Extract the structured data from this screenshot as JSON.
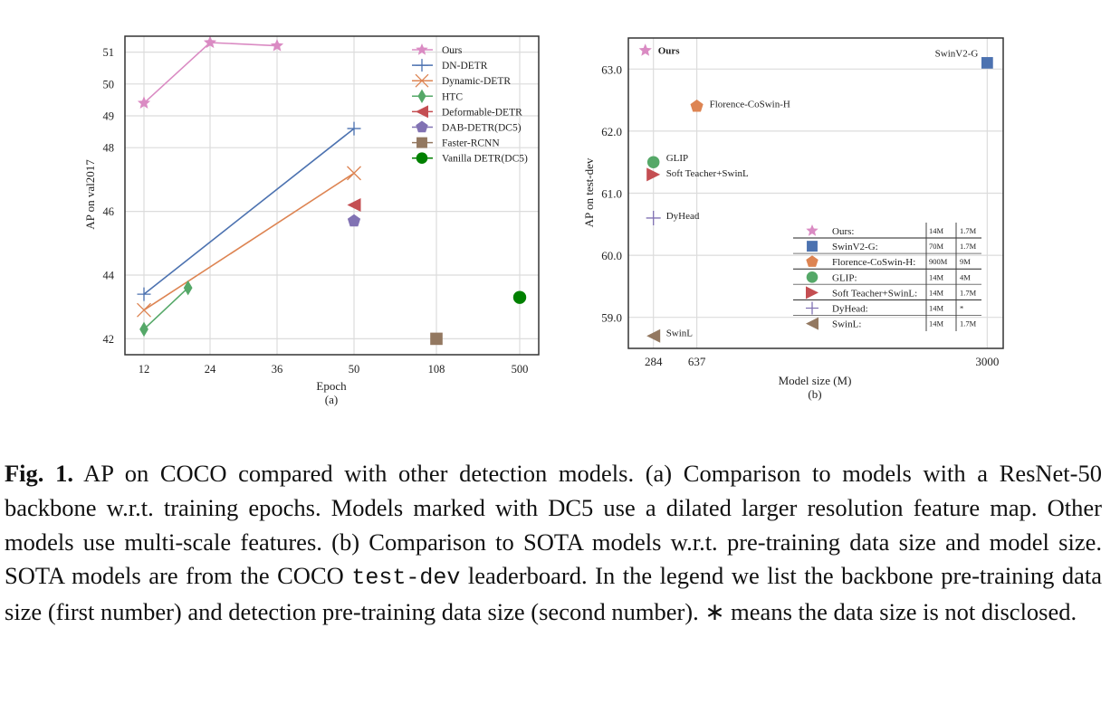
{
  "chart_data": [
    {
      "type": "line",
      "panel_label": "(a)",
      "xlabel": "Epoch",
      "ylabel": "AP on val2017",
      "x_ticks": [
        "12",
        "24",
        "36",
        "50",
        "108",
        "500"
      ],
      "y_ticks": [
        "42",
        "44",
        "46",
        "48",
        "49",
        "50",
        "51"
      ],
      "ylim": [
        41.5,
        51.5
      ],
      "grid": true,
      "legend": "top-right",
      "series": [
        {
          "name": "Ours",
          "color": "#da8bc3",
          "marker": "star",
          "points": [
            [
              12,
              49.4
            ],
            [
              24,
              51.3
            ],
            [
              36,
              51.2
            ]
          ]
        },
        {
          "name": "DN-DETR",
          "color": "#4c72b0",
          "marker": "plus",
          "points": [
            [
              12,
              43.4
            ],
            [
              50,
              48.6
            ]
          ]
        },
        {
          "name": "Dynamic-DETR",
          "color": "#dd8452",
          "marker": "x",
          "points": [
            [
              12,
              42.9
            ],
            [
              50,
              47.2
            ]
          ]
        },
        {
          "name": "HTC",
          "color": "#55a868",
          "marker": "diamond",
          "points": [
            [
              12,
              42.3
            ],
            [
              20,
              43.6
            ]
          ]
        },
        {
          "name": "Deformable-DETR",
          "color": "#c44e52",
          "marker": "triangle-left",
          "points": [
            [
              50,
              46.2
            ]
          ]
        },
        {
          "name": "DAB-DETR(DC5)",
          "color": "#8172b3",
          "marker": "pentagon",
          "points": [
            [
              50,
              45.7
            ]
          ]
        },
        {
          "name": "Faster-RCNN",
          "color": "#937860",
          "marker": "square",
          "points": [
            [
              108,
              42.0
            ]
          ]
        },
        {
          "name": "Vanilla DETR(DC5)",
          "color": "#008000",
          "marker": "circle",
          "points": [
            [
              500,
              43.3
            ]
          ]
        }
      ]
    },
    {
      "type": "scatter",
      "panel_label": "(b)",
      "xlabel": "Model size (M)",
      "ylabel": "AP on test-dev",
      "x_ticks": [
        "284",
        "637",
        "3000"
      ],
      "y_ticks": [
        "59.0",
        "60.0",
        "61.0",
        "62.0",
        "63.0"
      ],
      "xlim": [
        80,
        3130
      ],
      "ylim": [
        58.5,
        63.5
      ],
      "grid": true,
      "legend": "bottom-right",
      "legend_columns": [
        "backbone pre-training data size",
        "detection pre-training data size"
      ],
      "series": [
        {
          "name": "Ours",
          "legend_label": "Ours:",
          "color": "#da8bc3",
          "marker": "star",
          "x": 218,
          "y": 63.3,
          "backbone_data": "14M",
          "detection_data": "1.7M"
        },
        {
          "name": "SwinV2-G",
          "legend_label": "SwinV2-G:",
          "color": "#4c72b0",
          "marker": "square",
          "x": 3000,
          "y": 63.1,
          "backbone_data": "70M",
          "detection_data": "1.7M"
        },
        {
          "name": "Florence-CoSwin-H",
          "legend_label": "Florence-CoSwin-H:",
          "color": "#dd8452",
          "marker": "pentagon",
          "x": 637,
          "y": 62.4,
          "backbone_data": "900M",
          "detection_data": "9M"
        },
        {
          "name": "GLIP",
          "legend_label": "GLIP:",
          "color": "#55a868",
          "marker": "circle",
          "x": 284,
          "y": 61.5,
          "backbone_data": "14M",
          "detection_data": "4M"
        },
        {
          "name": "Soft Teacher+SwinL",
          "legend_label": "Soft Teacher+SwinL:",
          "color": "#c44e52",
          "marker": "triangle-right",
          "x": 284,
          "y": 61.3,
          "backbone_data": "14M",
          "detection_data": "1.7M"
        },
        {
          "name": "DyHead",
          "legend_label": "DyHead:",
          "color": "#8172b3",
          "marker": "plus",
          "x": 284,
          "y": 60.6,
          "backbone_data": "14M",
          "detection_data": "*"
        },
        {
          "name": "SwinL",
          "legend_label": "SwinL:",
          "color": "#937860",
          "marker": "triangle-left",
          "x": 284,
          "y": 58.7,
          "backbone_data": "14M",
          "detection_data": "1.7M"
        }
      ]
    }
  ],
  "caption": {
    "label": "Fig. 1.",
    "text1": " AP on COCO compared with other detection models. (a) Comparison to models with a ResNet-50 backbone w.r.t. training epochs. Models marked with DC5 use a dilated larger resolution feature map. Other models use multi-scale features. (b) Comparison to SOTA models w.r.t. pre-training data size and model size. SOTA models are from the COCO ",
    "code": "test-dev",
    "text2": " leaderboard. In the legend we list the backbone pre-training data size (first number) and detection pre-training data size (second number). ∗ means the data size is not disclosed."
  }
}
